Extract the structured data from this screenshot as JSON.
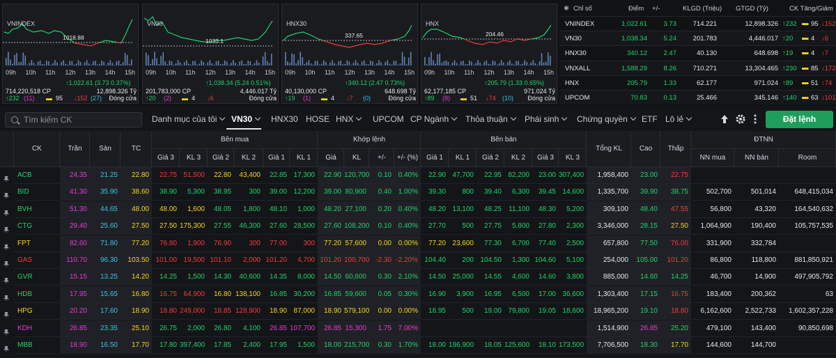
{
  "mini_charts": [
    {
      "name": "VNINDEX",
      "ref_label": "1018.88",
      "times": [
        "09h",
        "10h",
        "11h",
        "12h",
        "13h",
        "14h",
        "15h"
      ],
      "volume": "714,220,518 CP",
      "change": "↑1,022.61 (3.73 0.37%)",
      "value": "12,898.326 Tỷ",
      "up": "↑232",
      "up_ceiling": "(11)",
      "ref": "95",
      "down": "↓152",
      "down_floor": "(27)",
      "status": "Đóng cửa"
    },
    {
      "name": "VN30",
      "ref_label": "1033.1",
      "times": [
        "09h",
        "10h",
        "11h",
        "12h",
        "13h",
        "14h",
        "15h"
      ],
      "volume": "201,783,000 CP",
      "change": "↑1,038.34 (5.24 0.51%)",
      "value": "4,446.017 Tỷ",
      "up": "↑20",
      "up_ceiling": "(2)",
      "ref": "4",
      "down": "↓6",
      "down_floor": "",
      "status": "Đóng cửa"
    },
    {
      "name": "HNX30",
      "ref_label": "337.65",
      "times": [
        "09h",
        "10h",
        "11h",
        "12h",
        "13h",
        "14h",
        "15h"
      ],
      "volume": "40,130,000 CP",
      "change": "↑340.12 (2.47 0.73%)",
      "value": "648.698 Tỷ",
      "up": "↑19",
      "up_ceiling": "(1)",
      "ref": "4",
      "down": "↓7",
      "down_floor": "(0)",
      "status": "Đóng cửa"
    },
    {
      "name": "HNX",
      "ref_label": "204.46",
      "times": [
        "09h",
        "10h",
        "11h",
        "12h",
        "13h",
        "14h",
        "15h"
      ],
      "volume": "62,177,185 CP",
      "change": "↑205.79 (1.33 0.65%)",
      "value": "971.024 Tỷ",
      "up": "↑89",
      "up_ceiling": "(8)",
      "ref": "51",
      "down": "↓74",
      "down_floor": "(10)",
      "status": "Đóng cửa"
    }
  ],
  "index_table": {
    "headers": [
      "Chỉ số",
      "Điểm",
      "+/-",
      "KLGD (Triệu)",
      "GTGD (Tỷ)",
      "CK Tăng/Giảm"
    ],
    "rows": [
      {
        "name": "VNINDEX",
        "point": "1,022.61",
        "chg": "3.73",
        "vol": "714.221",
        "val": "12,898.326",
        "up": "↑232",
        "ref": "95",
        "down": "↓152"
      },
      {
        "name": "VN30",
        "point": "1,038.34",
        "chg": "5.24",
        "vol": "201.783",
        "val": "4,446.017",
        "up": "↑20",
        "ref": "4",
        "down": "↓6"
      },
      {
        "name": "HNX30",
        "point": "340.12",
        "chg": "2.47",
        "vol": "40.130",
        "val": "648.698",
        "up": "↑19",
        "ref": "4",
        "down": "↓7"
      },
      {
        "name": "VNXALL",
        "point": "1,588.29",
        "chg": "8.26",
        "vol": "710.271",
        "val": "13,304.465",
        "up": "↑230",
        "ref": "85",
        "down": "↓172"
      },
      {
        "name": "HNX",
        "point": "205.79",
        "chg": "1.33",
        "vol": "62.177",
        "val": "971.024",
        "up": "↑89",
        "ref": "51",
        "down": "↓74"
      },
      {
        "name": "UPCOM",
        "point": "70.83",
        "chg": "0.13",
        "vol": "25.466",
        "val": "345.146",
        "up": "↑140",
        "ref": "63",
        "down": "↓101"
      }
    ]
  },
  "toolbar": {
    "search_placeholder": "Tìm kiếm CK",
    "tabs": [
      "Danh mục của tôi",
      "VN30",
      "HNX30",
      "HOSE",
      "HNX",
      "UPCOM",
      "CP Ngành",
      "Thỏa thuận",
      "Phái sinh",
      "Chứng quyền",
      "ETF",
      "Lô lẻ"
    ],
    "order_label": "Đặt lệnh"
  },
  "table": {
    "group_headers": {
      "buy": "Bên mua",
      "match": "Khớp lệnh",
      "sell": "Bên bán",
      "foreign": "ĐTNN"
    },
    "col_headers": {
      "ck": "CK",
      "tran": "Trần",
      "san": "Sàn",
      "tc": "TC",
      "buy": [
        "Giá 3",
        "KL 3",
        "Giá 2",
        "KL 2",
        "Giá 1",
        "KL 1"
      ],
      "match": [
        "Giá",
        "KL",
        "+/-",
        "+/- (%)"
      ],
      "sell": [
        "Giá 1",
        "KL 1",
        "Giá 2",
        "KL 2",
        "Giá 3",
        "KL 3"
      ],
      "tongkl": "Tổng KL",
      "cao": "Cao",
      "thap": "Thấp",
      "foreign": [
        "NN mua",
        "NN bán",
        "Room"
      ]
    },
    "colors": {
      "up": "#20d36c",
      "down": "#f23b3b",
      "ref": "#f5d61c",
      "ceil": "#e63bd6",
      "floor": "#36c6e8"
    },
    "rows": [
      {
        "ck": "ACB",
        "c": "up",
        "tran": "24.35",
        "san": "21.25",
        "tc": "22.80",
        "buy": [
          [
            "22.75",
            "51,500",
            "d"
          ],
          [
            "22.80",
            "43,400",
            "r"
          ],
          [
            "22.85",
            "17,300",
            "u"
          ]
        ],
        "match": [
          "22.90",
          "120,700",
          "0.10",
          "0.40%",
          "u"
        ],
        "sell": [
          [
            "22.90",
            "47,700",
            "u"
          ],
          [
            "22.95",
            "82,200",
            "u"
          ],
          [
            "23.00",
            "307,400",
            "u"
          ]
        ],
        "tongkl": "1,958,400",
        "cao": [
          "23.00",
          "u"
        ],
        "thap": [
          "22.75",
          "d"
        ],
        "nn": [
          "",
          "",
          ""
        ]
      },
      {
        "ck": "BID",
        "c": "up",
        "tran": "41.30",
        "san": "35.90",
        "tc": "38.60",
        "buy": [
          [
            "38.90",
            "5,300",
            "u"
          ],
          [
            "38.95",
            "300",
            "u"
          ],
          [
            "39.00",
            "12,200",
            "u"
          ]
        ],
        "match": [
          "39.00",
          "80,900",
          "0.40",
          "1.00%",
          "u"
        ],
        "sell": [
          [
            "39.30",
            "800",
            "u"
          ],
          [
            "39.40",
            "6,300",
            "u"
          ],
          [
            "39.45",
            "14,600",
            "u"
          ]
        ],
        "tongkl": "1,335,700",
        "cao": [
          "39.90",
          "u"
        ],
        "thap": [
          "38.75",
          "u"
        ],
        "nn": [
          "502,700",
          "501,014",
          "648,415,034"
        ]
      },
      {
        "ck": "BVH",
        "c": "up",
        "tran": "51.30",
        "san": "44.65",
        "tc": "48.00",
        "buy": [
          [
            "48.00",
            "1,600",
            "r"
          ],
          [
            "48.05",
            "1,800",
            "u"
          ],
          [
            "48.10",
            "1,000",
            "u"
          ]
        ],
        "match": [
          "48.20",
          "27,100",
          "0.20",
          "0.40%",
          "u"
        ],
        "sell": [
          [
            "48.20",
            "13,100",
            "u"
          ],
          [
            "48.25",
            "11,100",
            "u"
          ],
          [
            "48.30",
            "5,200",
            "u"
          ]
        ],
        "tongkl": "309,100",
        "cao": [
          "48.40",
          "u"
        ],
        "thap": [
          "47.55",
          "d"
        ],
        "nn": [
          "56,800",
          "43,320",
          "164,540,632"
        ]
      },
      {
        "ck": "CTG",
        "c": "up",
        "tran": "29.40",
        "san": "25.60",
        "tc": "27.50",
        "buy": [
          [
            "27.50",
            "175,300",
            "r"
          ],
          [
            "27.55",
            "46,300",
            "u"
          ],
          [
            "27.60",
            "28,500",
            "u"
          ]
        ],
        "match": [
          "27.60",
          "108,200",
          "0.10",
          "0.40%",
          "u"
        ],
        "sell": [
          [
            "27.70",
            "500",
            "u"
          ],
          [
            "27.75",
            "5,800",
            "u"
          ],
          [
            "27.80",
            "2,300",
            "u"
          ]
        ],
        "tongkl": "3,346,000",
        "cao": [
          "28.15",
          "u"
        ],
        "thap": [
          "27.50",
          "r"
        ],
        "nn": [
          "1,064,900",
          "190,400",
          "105,757,535"
        ]
      },
      {
        "ck": "FPT",
        "c": "ref",
        "tran": "82.60",
        "san": "71.80",
        "tc": "77.20",
        "buy": [
          [
            "76.80",
            "1,900",
            "d"
          ],
          [
            "76.90",
            "300",
            "d"
          ],
          [
            "77.00",
            "300",
            "d"
          ]
        ],
        "match": [
          "77.20",
          "57,600",
          "0.00",
          "0.00%",
          "r"
        ],
        "sell": [
          [
            "77.20",
            "23,600",
            "r"
          ],
          [
            "77.30",
            "6,700",
            "u"
          ],
          [
            "77.40",
            "2,500",
            "u"
          ]
        ],
        "tongkl": "657,800",
        "cao": [
          "77.50",
          "u"
        ],
        "thap": [
          "76.00",
          "d"
        ],
        "nn": [
          "331,900",
          "332,784",
          ""
        ]
      },
      {
        "ck": "GAS",
        "c": "down",
        "tran": "110.70",
        "san": "96.30",
        "tc": "103.50",
        "buy": [
          [
            "101.00",
            "19,500",
            "d"
          ],
          [
            "101.10",
            "2,000",
            "d"
          ],
          [
            "101.20",
            "4,700",
            "d"
          ]
        ],
        "match": [
          "101.20",
          "100,700",
          "-2.30",
          "-2.20%",
          "d"
        ],
        "sell": [
          [
            "104.40",
            "200",
            "u"
          ],
          [
            "104.50",
            "1,300",
            "u"
          ],
          [
            "104.60",
            "5,100",
            "u"
          ]
        ],
        "tongkl": "254,000",
        "cao": [
          "105.00",
          "u"
        ],
        "thap": [
          "101.20",
          "d"
        ],
        "nn": [
          "86,800",
          "118,800",
          "881,850,921"
        ]
      },
      {
        "ck": "GVR",
        "c": "up",
        "tran": "15.15",
        "san": "13.25",
        "tc": "14.20",
        "buy": [
          [
            "14.25",
            "1,500",
            "u"
          ],
          [
            "14.30",
            "40,600",
            "u"
          ],
          [
            "14.35",
            "8,000",
            "u"
          ]
        ],
        "match": [
          "14.50",
          "60,600",
          "0.30",
          "2.10%",
          "u"
        ],
        "sell": [
          [
            "14.50",
            "25,000",
            "u"
          ],
          [
            "14.55",
            "4,600",
            "u"
          ],
          [
            "14.60",
            "3,800",
            "u"
          ]
        ],
        "tongkl": "885,000",
        "cao": [
          "14.60",
          "u"
        ],
        "thap": [
          "14.25",
          "u"
        ],
        "nn": [
          "46,700",
          "14,900",
          "497,905,792"
        ]
      },
      {
        "ck": "HDB",
        "c": "up",
        "tran": "17.95",
        "san": "15.65",
        "tc": "16.80",
        "buy": [
          [
            "16.75",
            "64,900",
            "d"
          ],
          [
            "16.80",
            "138,100",
            "r"
          ],
          [
            "16.85",
            "30,200",
            "u"
          ]
        ],
        "match": [
          "16.85",
          "59,600",
          "0.05",
          "0.30%",
          "u"
        ],
        "sell": [
          [
            "16.90",
            "3,900",
            "u"
          ],
          [
            "16.95",
            "6,500",
            "u"
          ],
          [
            "17.00",
            "36,600",
            "u"
          ]
        ],
        "tongkl": "1,303,400",
        "cao": [
          "17.15",
          "u"
        ],
        "thap": [
          "16.75",
          "d"
        ],
        "nn": [
          "183,400",
          "200,362",
          "63"
        ]
      },
      {
        "ck": "HPG",
        "c": "ref",
        "tran": "20.20",
        "san": "17.60",
        "tc": "18.90",
        "buy": [
          [
            "18.80",
            "249,000",
            "d"
          ],
          [
            "18.85",
            "128,900",
            "d"
          ],
          [
            "18.90",
            "87,000",
            "r"
          ]
        ],
        "match": [
          "18.90",
          "579,100",
          "0.00",
          "0.00%",
          "r"
        ],
        "sell": [
          [
            "18.95",
            "500",
            "u"
          ],
          [
            "19.00",
            "79,800",
            "u"
          ],
          [
            "19.05",
            "18,600",
            "u"
          ]
        ],
        "tongkl": "18,965,200",
        "cao": [
          "19.10",
          "u"
        ],
        "thap": [
          "18.80",
          "d"
        ],
        "nn": [
          "6,162,600",
          "2,522,733",
          "1,602,357,228"
        ]
      },
      {
        "ck": "KDH",
        "c": "ceil",
        "tran": "26.85",
        "san": "23.35",
        "tc": "25.10",
        "buy": [
          [
            "26.75",
            "2,000",
            "u"
          ],
          [
            "26.80",
            "4,100",
            "u"
          ],
          [
            "26.85",
            "107,700",
            "p"
          ]
        ],
        "match": [
          "26.85",
          "15,300",
          "1.75",
          "7.00%",
          "p"
        ],
        "sell": [
          [
            "",
            "",
            ""
          ],
          [
            "",
            "",
            ""
          ],
          [
            "",
            "",
            ""
          ]
        ],
        "tongkl": "1,514,900",
        "cao": [
          "26.85",
          "p"
        ],
        "thap": [
          "25.20",
          "u"
        ],
        "nn": [
          "479,100",
          "143,400",
          "90,850,698"
        ]
      },
      {
        "ck": "MBB",
        "c": "up",
        "tran": "18.90",
        "san": "16.50",
        "tc": "17.70",
        "buy": [
          [
            "17.80",
            "397,400",
            "u"
          ],
          [
            "17.85",
            "2,400",
            "u"
          ],
          [
            "17.95",
            "1,500",
            "u"
          ]
        ],
        "match": [
          "18.00",
          "215,700",
          "0.30",
          "1.70%",
          "u"
        ],
        "sell": [
          [
            "18.00",
            "196,900",
            "u"
          ],
          [
            "18.05",
            "125,600",
            "u"
          ],
          [
            "18.10",
            "173,500",
            "u"
          ]
        ],
        "tongkl": "7,706,500",
        "cao": [
          "18.30",
          "u"
        ],
        "thap": [
          "17.70",
          "r"
        ],
        "nn": [
          "144,600",
          "144,700",
          ""
        ]
      }
    ]
  }
}
